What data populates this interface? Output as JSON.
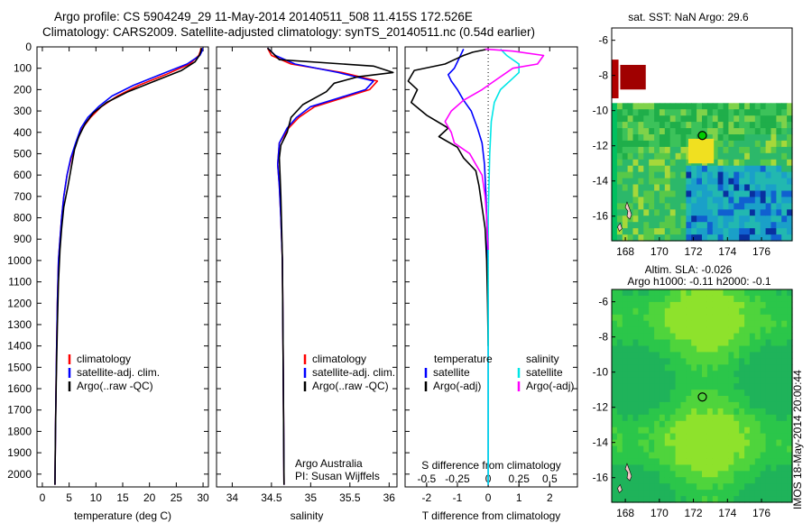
{
  "header": {
    "line1": "Argo profile: CS 5904249_29 11-May-2014 20140511_508 11.415S 172.526E",
    "line2": "Climatology: CARS2009. Satellite-adjusted climatology: synTS_20140511.nc (0.54d earlier)"
  },
  "footer_stamp": "IMOS 18-May-2014 20:00:44",
  "colors": {
    "red": "#ff0000",
    "blue": "#0000ff",
    "black": "#000000",
    "cyan": "#00e6e6",
    "magenta": "#ff00ff",
    "map_dark_red": "#a00000",
    "map_green": "#00b050",
    "argo_marker": "#00cc00"
  },
  "chart_data": [
    {
      "id": "temperature",
      "type": "line",
      "xlabel": "temperature (deg C)",
      "ylabel": "",
      "xlim": [
        -1,
        31
      ],
      "ylim": [
        2060,
        0
      ],
      "xticks": [
        0,
        5,
        10,
        15,
        20,
        25,
        30
      ],
      "yticks": [
        0,
        100,
        200,
        300,
        400,
        500,
        600,
        700,
        800,
        900,
        1000,
        1100,
        1200,
        1300,
        1400,
        1500,
        1600,
        1700,
        1800,
        1900,
        2000
      ],
      "legend": {
        "placement": "lower-left",
        "entries": [
          "climatology",
          "satellite-adj. clim.",
          "Argo(..raw -QC)"
        ]
      },
      "series": [
        {
          "name": "climatology",
          "color": "red",
          "x": [
            29.6,
            29.5,
            29.2,
            27.5,
            23,
            18,
            14,
            11,
            9,
            7.5,
            6.3,
            5.4,
            4.6,
            4,
            3.6,
            3.3,
            3,
            2.8,
            2.6,
            2.45,
            2.35
          ],
          "y": [
            5,
            20,
            40,
            80,
            130,
            180,
            230,
            280,
            330,
            380,
            450,
            520,
            600,
            700,
            800,
            900,
            1000,
            1200,
            1500,
            1800,
            2050
          ]
        },
        {
          "name": "satellite-adj. clim.",
          "color": "blue",
          "x": [
            29.9,
            29.8,
            29.4,
            27,
            22,
            17,
            13,
            10.5,
            8.5,
            7.2,
            6.2,
            5.3,
            4.6,
            4,
            3.6,
            3.3,
            3,
            2.8,
            2.6,
            2.45,
            2.35
          ],
          "y": [
            5,
            20,
            40,
            80,
            130,
            180,
            230,
            280,
            330,
            380,
            450,
            520,
            600,
            700,
            800,
            900,
            1000,
            1200,
            1500,
            1800,
            2050
          ]
        },
        {
          "name": "Argo(..raw -QC)",
          "color": "black",
          "x": [
            29.7,
            29.6,
            29.3,
            28.5,
            26,
            21,
            16,
            12,
            9.5,
            8,
            6.8,
            6,
            5.5,
            4.8,
            4,
            3.6,
            3.3,
            3,
            2.8,
            2.6,
            2.45,
            2.35
          ],
          "y": [
            5,
            20,
            40,
            70,
            110,
            160,
            210,
            260,
            310,
            360,
            420,
            480,
            550,
            650,
            750,
            850,
            950,
            1100,
            1300,
            1550,
            1800,
            2050
          ]
        }
      ]
    },
    {
      "id": "salinity",
      "type": "line",
      "xlabel": "salinity",
      "ylabel": "",
      "xlim": [
        33.8,
        36.1
      ],
      "ylim": [
        2060,
        0
      ],
      "xticks": [
        34,
        34.5,
        35,
        35.5,
        36
      ],
      "legend": {
        "placement": "lower-right",
        "entries": [
          "climatology",
          "satellite-adj. clim.",
          "Argo(..raw -QC)"
        ]
      },
      "annotation": [
        "Argo Australia",
        "PI: Susan Wijffels"
      ],
      "series": [
        {
          "name": "climatology",
          "color": "red",
          "x": [
            34.45,
            34.5,
            34.75,
            35.4,
            35.85,
            35.75,
            35.4,
            35.05,
            34.85,
            34.72,
            34.6,
            34.58,
            34.6,
            34.62,
            34.64,
            34.65,
            34.66
          ],
          "y": [
            5,
            40,
            80,
            120,
            160,
            200,
            240,
            280,
            330,
            380,
            450,
            550,
            650,
            800,
            1000,
            1500,
            2050
          ]
        },
        {
          "name": "satellite-adj. clim.",
          "color": "blue",
          "x": [
            34.45,
            34.55,
            34.8,
            35.35,
            35.8,
            35.7,
            35.35,
            35,
            34.82,
            34.7,
            34.6,
            34.58,
            34.6,
            34.62,
            34.64,
            34.65,
            34.66
          ],
          "y": [
            5,
            40,
            80,
            120,
            160,
            200,
            240,
            280,
            330,
            380,
            450,
            550,
            650,
            800,
            1000,
            1500,
            2050
          ]
        },
        {
          "name": "Argo(..raw -QC)",
          "color": "black",
          "x": [
            34.45,
            34.6,
            35.8,
            36.05,
            35.6,
            35.3,
            35.2,
            34.9,
            34.75,
            34.7,
            34.62,
            34.6,
            34.61,
            34.62,
            34.63,
            34.64,
            34.65,
            34.66
          ],
          "y": [
            5,
            60,
            90,
            120,
            140,
            170,
            210,
            270,
            330,
            400,
            460,
            520,
            600,
            700,
            850,
            1000,
            1500,
            2050
          ]
        }
      ]
    },
    {
      "id": "differences",
      "type": "line",
      "xlabel": "T difference from climatology",
      "top_xlabel": "S difference from climatology",
      "xlim": [
        -2.7,
        2.9
      ],
      "ylim": [
        2060,
        0
      ],
      "xticks": [
        -2,
        -1,
        0,
        1,
        2
      ],
      "sticks_labels": [
        "-0.5",
        "-0.25",
        "0",
        "0.25",
        "0.5"
      ],
      "legend": {
        "placement": "lower",
        "columns": [
          {
            "title": "temperature",
            "entries": [
              "satellite",
              "Argo(-adj)"
            ]
          },
          {
            "title": "salinity",
            "entries": [
              "satellite",
              "Argo(-adj)"
            ]
          }
        ]
      },
      "series": [
        {
          "name": "temperature satellite",
          "color": "blue",
          "x": [
            -0.8,
            -0.9,
            -1,
            -1.1,
            -1.3,
            -1.2,
            -1,
            -0.8,
            -0.55,
            -0.35,
            -0.2,
            -0.12,
            -0.07,
            -0.03,
            0,
            0
          ],
          "y": [
            10,
            40,
            70,
            100,
            130,
            160,
            200,
            250,
            300,
            380,
            450,
            550,
            700,
            900,
            1200,
            2050
          ]
        },
        {
          "name": "temperature Argo(-adj)",
          "color": "black",
          "x": [
            0,
            -0.5,
            -0.8,
            -1.1,
            -1.4,
            -2.4,
            -2.6,
            -2.3,
            -2.5,
            -2,
            -1.3,
            -1.6,
            -1,
            -0.8,
            -0.4,
            -0.3,
            -0.2,
            -0.1,
            -0.05,
            -0.02,
            0
          ],
          "y": [
            10,
            25,
            40,
            60,
            80,
            110,
            160,
            200,
            260,
            320,
            380,
            420,
            470,
            520,
            580,
            650,
            750,
            850,
            1000,
            1200,
            1400
          ]
        },
        {
          "name": "salinity satellite",
          "color": "cyan",
          "x": [
            0.4,
            0.6,
            1,
            1,
            0.7,
            0.4,
            0.2,
            0.1,
            0.05,
            0,
            0
          ],
          "y": [
            10,
            40,
            80,
            120,
            160,
            200,
            260,
            350,
            500,
            800,
            2050
          ]
        },
        {
          "name": "salinity Argo(-adj)",
          "color": "magenta",
          "x": [
            -0.1,
            0.8,
            1.8,
            1.6,
            0.8,
            0.3,
            -0.2,
            -0.8,
            -1.2,
            -1.4,
            -1.2,
            -1.1,
            -0.6,
            -0.4,
            -0.2,
            -0.1,
            -0.05,
            0
          ],
          "y": [
            10,
            20,
            40,
            80,
            100,
            150,
            200,
            250,
            300,
            350,
            400,
            450,
            500,
            550,
            600,
            700,
            800,
            950
          ]
        }
      ]
    },
    {
      "id": "sst_map",
      "type": "heatmap",
      "title": "sat. SST: NaN Argo: 29.6",
      "xlim": [
        167.2,
        177.8
      ],
      "ylim": [
        -17.4,
        -5.3
      ],
      "xticks": [
        168,
        170,
        172,
        174,
        176
      ],
      "yticks": [
        -6,
        -8,
        -10,
        -12,
        -14,
        -16
      ],
      "argo_position": {
        "lon": 172.526,
        "lat": -11.415
      }
    },
    {
      "id": "sla_map",
      "type": "heatmap",
      "title": "Altim. SLA: -0.026",
      "subtitle": "Argo h1000: -0.11 h2000: -0.1",
      "xlim": [
        167.2,
        177.8
      ],
      "ylim": [
        -17.4,
        -5.3
      ],
      "xticks": [
        168,
        170,
        172,
        174,
        176
      ],
      "yticks": [
        -6,
        -8,
        -10,
        -12,
        -14,
        -16
      ],
      "argo_position": {
        "lon": 172.526,
        "lat": -11.415
      }
    }
  ]
}
